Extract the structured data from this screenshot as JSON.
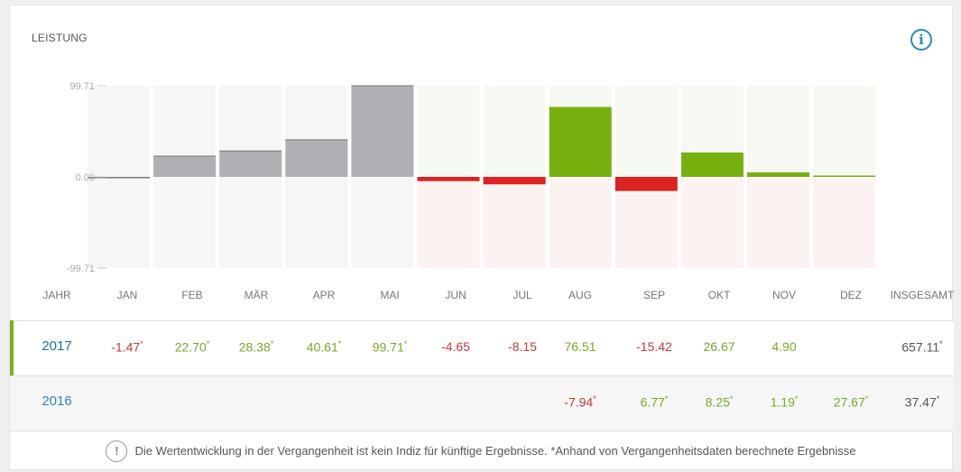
{
  "title": "LEISTUNG",
  "info_icon": "i",
  "chart_data": {
    "type": "bar",
    "categories": [
      "JAN",
      "FEB",
      "MÄR",
      "APR",
      "MAI",
      "JUN",
      "JUL",
      "AUG",
      "SEP",
      "OKT",
      "NOV",
      "DEZ"
    ],
    "values": [
      -1.47,
      22.7,
      28.38,
      40.61,
      99.71,
      -4.65,
      -8.15,
      76.51,
      -15.42,
      26.67,
      4.9,
      0
    ],
    "simulated": [
      true,
      true,
      true,
      true,
      true,
      false,
      false,
      false,
      false,
      false,
      false,
      false
    ],
    "ylim": [
      -99.71,
      99.71
    ],
    "yticks": [
      "99.71",
      "0.00",
      "-99.71"
    ],
    "colors": {
      "simulated": "#aeb0b3",
      "positive": "#76b00f",
      "negative": "#dc2222"
    }
  },
  "table": {
    "headers": [
      "JAHR",
      "JAN",
      "FEB",
      "MÄR",
      "APR",
      "MAI",
      "JUN",
      "JUL",
      "AUG",
      "SEP",
      "OKT",
      "NOV",
      "DEZ",
      "INSGESAMT"
    ],
    "rows": [
      {
        "year": "2017",
        "cells": [
          [
            "-1.47",
            "*",
            "neg"
          ],
          [
            "22.70",
            "*",
            "pos"
          ],
          [
            "28.38",
            "*",
            "pos"
          ],
          [
            "40.61",
            "*",
            "pos"
          ],
          [
            "99.71",
            "*",
            "pos"
          ],
          [
            "-4.65",
            "",
            "neg"
          ],
          [
            "-8.15",
            "",
            "neg"
          ],
          [
            "76.51",
            "",
            "pos"
          ],
          [
            "-15.42",
            "",
            "neg"
          ],
          [
            "26.67",
            "",
            "pos"
          ],
          [
            "4.90",
            "",
            "pos"
          ],
          [
            "",
            "",
            ""
          ],
          [
            "657.11",
            "*",
            "tot"
          ]
        ]
      },
      {
        "year": "2016",
        "cells": [
          [
            "",
            "",
            ""
          ],
          [
            "",
            "",
            ""
          ],
          [
            "",
            "",
            ""
          ],
          [
            "",
            "",
            ""
          ],
          [
            "",
            "",
            ""
          ],
          [
            "",
            "",
            ""
          ],
          [
            "",
            "",
            ""
          ],
          [
            "-7.94",
            "*",
            "neg"
          ],
          [
            "6.77",
            "*",
            "pos"
          ],
          [
            "8.25",
            "*",
            "pos"
          ],
          [
            "1.19",
            "*",
            "pos"
          ],
          [
            "27.67",
            "*",
            "pos"
          ],
          [
            "37.47",
            "*",
            "tot"
          ]
        ]
      }
    ]
  },
  "footer": {
    "icon": "!",
    "text": "Die Wertentwicklung in der Vergangenheit ist kein Indiz für künftige Ergebnisse. *Anhand von Vergangenheitsdaten berechnete Ergebnisse"
  }
}
